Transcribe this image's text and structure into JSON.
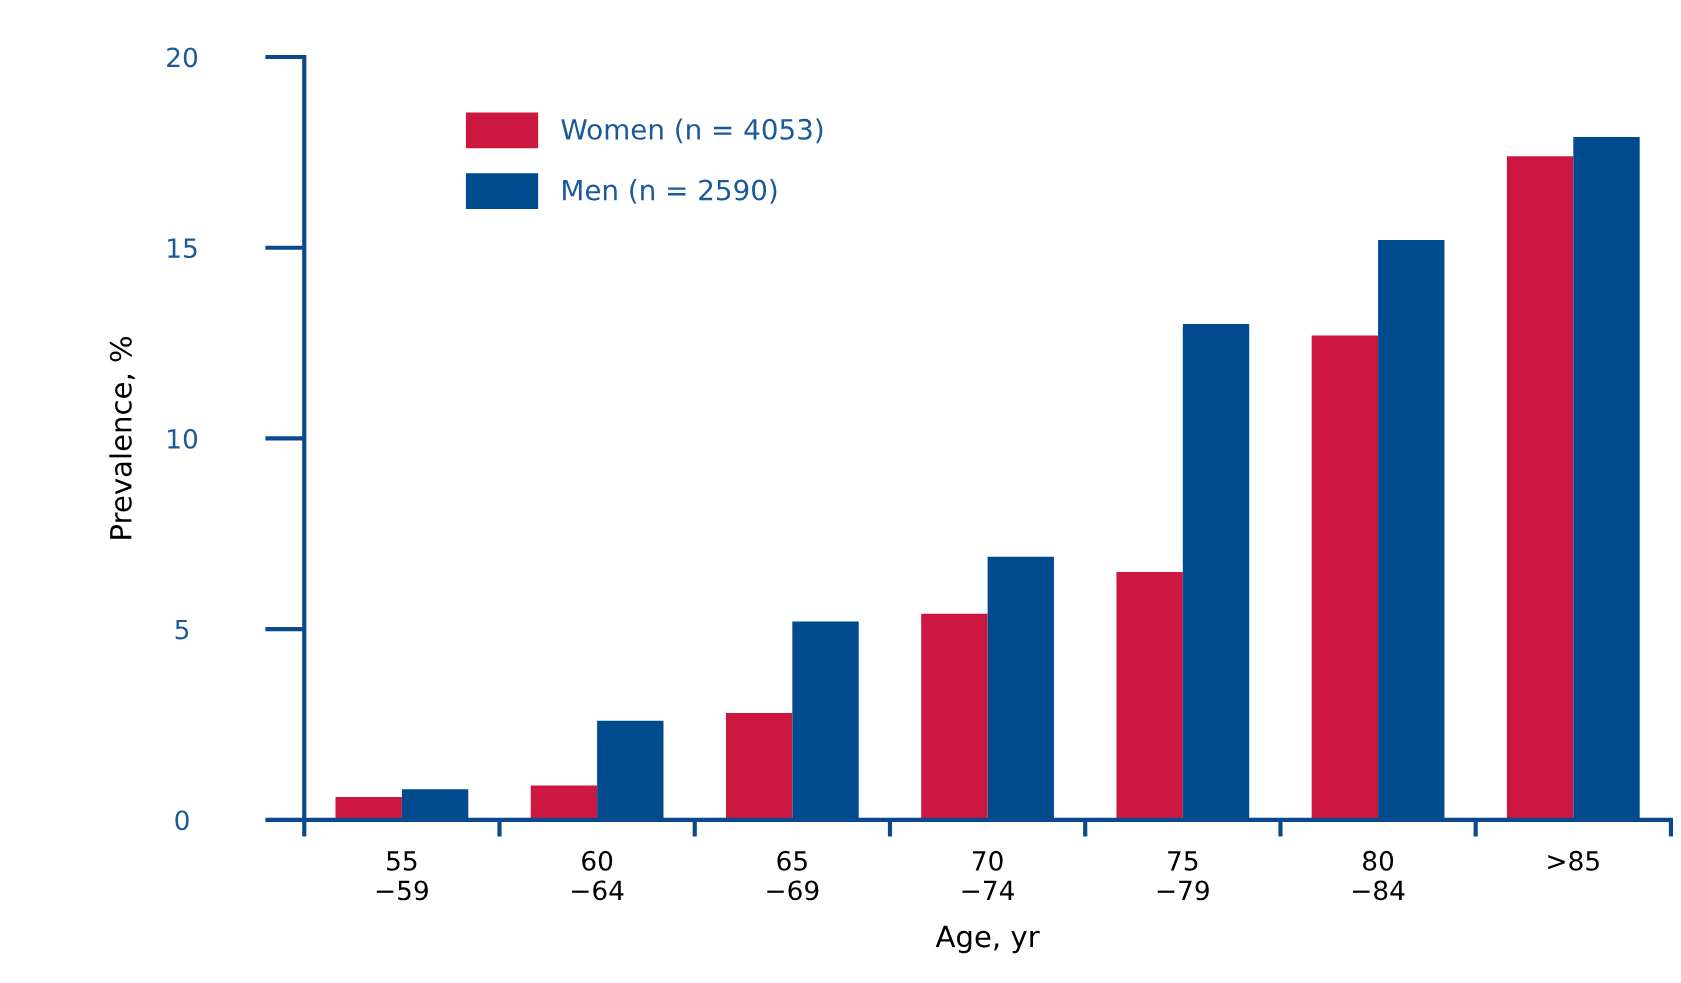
{
  "chart_data": {
    "type": "bar",
    "xlabel": "Age, yr",
    "ylabel": "Prevalence, %",
    "categories": [
      "55\n−59",
      "60\n−64",
      "65\n−69",
      "70\n−74",
      "75\n−79",
      "80\n−84",
      ">85"
    ],
    "series": [
      {
        "name": "Women (n = 4053)",
        "color": "#cc1841",
        "values": [
          0.6,
          0.9,
          2.8,
          5.4,
          6.5,
          12.7,
          17.4
        ]
      },
      {
        "name": "Men (n = 2590)",
        "color": "#004b8d",
        "values": [
          0.8,
          2.6,
          5.2,
          6.9,
          13.0,
          15.2,
          17.9
        ]
      }
    ],
    "ylim": [
      0,
      20
    ],
    "yticks": [
      0,
      5,
      10,
      15,
      20
    ],
    "grid": false,
    "legend": "top left"
  }
}
